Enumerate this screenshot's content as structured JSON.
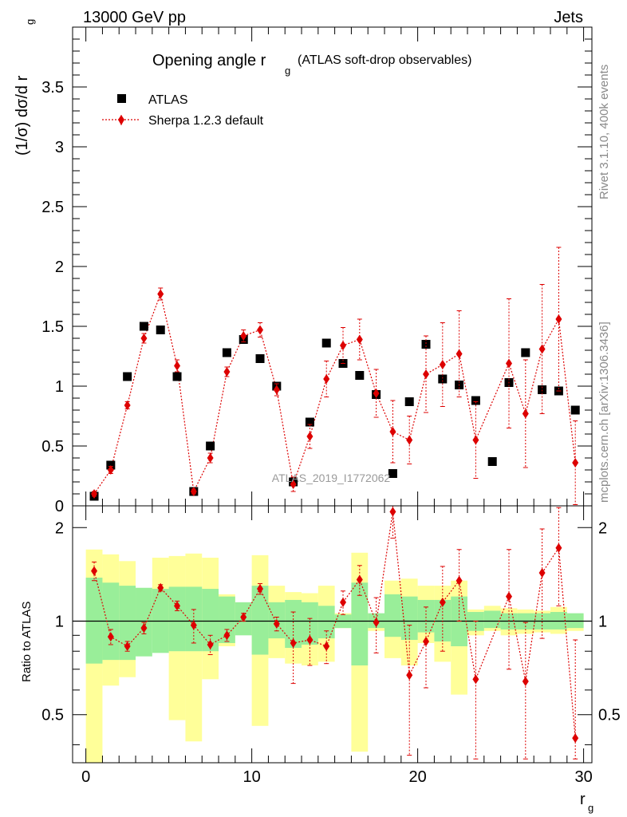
{
  "header": {
    "energy_label": "13000 GeV pp",
    "process_label": "Jets",
    "title_main": "Opening angle r",
    "title_sub": "g",
    "title_extra": "(ATLAS soft-drop observables)",
    "ylabel_main": "(1/σ) dσ/d r",
    "ylabel_sub": "g",
    "ratio_ylabel": "Ratio to ATLAS",
    "xlabel_main": "r",
    "xlabel_sub": "g",
    "watermark": "ATLAS_2019_I1772062",
    "side_rivet": "Rivet 3.1.10,  400k events",
    "side_mcplots": "mcplots.cern.ch [arXiv:1306.3436]"
  },
  "legend": {
    "data_label": "ATLAS",
    "mc_label": "Sherpa 1.2.3 default"
  },
  "colors": {
    "data": "#000000",
    "mc": "#dd0000",
    "band_inner": "#99ee99",
    "band_outer": "#ffff99"
  },
  "chart_data": [
    {
      "type": "scatter",
      "panel": "main",
      "title": "Opening angle r_g (ATLAS soft-drop observables)",
      "xlabel": "r_g",
      "ylabel": "(1/σ) dσ/d r_g",
      "xlim": [
        -0.8,
        30.5
      ],
      "ylim": [
        0,
        4.0
      ],
      "xticks": [
        0,
        10,
        20,
        30
      ],
      "yticks": [
        0,
        0.5,
        1,
        1.5,
        2,
        2.5,
        3,
        3.5
      ],
      "ytick_labels": [
        "0",
        "0.5",
        "1",
        "1.5",
        "2",
        "2.5",
        "3",
        "3.5"
      ],
      "series": [
        {
          "name": "ATLAS",
          "x": [
            0.5,
            1.5,
            2.5,
            3.5,
            4.5,
            5.5,
            6.5,
            7.5,
            8.5,
            9.5,
            10.5,
            11.5,
            12.5,
            13.5,
            14.5,
            15.5,
            16.5,
            17.5,
            18.5,
            19.5,
            20.5,
            21.5,
            22.5,
            23.5,
            24.5,
            25.5,
            26.5,
            27.5,
            28.5,
            29.5
          ],
          "y": [
            0.08,
            0.34,
            1.08,
            1.5,
            1.47,
            1.08,
            0.12,
            0.5,
            1.28,
            1.39,
            1.23,
            1.0,
            0.2,
            0.7,
            1.36,
            1.19,
            1.09,
            0.93,
            0.27,
            0.87,
            1.35,
            1.06,
            1.01,
            0.88,
            0.37,
            1.03,
            1.28,
            0.97,
            0.96,
            0.8
          ]
        },
        {
          "name": "Sherpa 1.2.3 default",
          "x": [
            0.5,
            1.5,
            2.5,
            3.5,
            4.5,
            5.5,
            6.5,
            7.5,
            8.5,
            9.5,
            10.5,
            11.5,
            12.5,
            13.5,
            14.5,
            15.5,
            16.5,
            17.5,
            18.5,
            19.5,
            20.5,
            21.5,
            22.5,
            23.5,
            25.5,
            26.5,
            27.5,
            28.5,
            29.5
          ],
          "y": [
            0.1,
            0.3,
            0.84,
            1.4,
            1.77,
            1.17,
            0.12,
            0.4,
            1.12,
            1.42,
            1.47,
            0.97,
            0.18,
            0.58,
            1.06,
            1.34,
            1.39,
            0.94,
            0.62,
            0.55,
            1.1,
            1.18,
            1.27,
            0.55,
            1.19,
            0.77,
            1.31,
            1.56,
            0.36
          ],
          "err": [
            0.02,
            0.03,
            0.03,
            0.04,
            0.05,
            0.05,
            0.02,
            0.04,
            0.04,
            0.05,
            0.06,
            0.05,
            0.06,
            0.1,
            0.15,
            0.15,
            0.17,
            0.2,
            0.26,
            0.2,
            0.32,
            0.35,
            0.36,
            0.32,
            0.54,
            0.45,
            0.54,
            0.6,
            0.35
          ]
        }
      ]
    },
    {
      "type": "scatter",
      "panel": "ratio",
      "ylabel": "Ratio to ATLAS",
      "xlabel": "r_g",
      "xlim": [
        -0.8,
        30.5
      ],
      "ylim": [
        0.35,
        2.35
      ],
      "xticks": [
        0,
        10,
        20,
        30
      ],
      "xtick_labels": [
        "0",
        "10",
        "20",
        "30"
      ],
      "yticks": [
        0.5,
        1,
        2
      ],
      "ytick_labels": [
        "0.5",
        "1",
        "2"
      ],
      "reference_line": 1,
      "bands": {
        "inner": [
          [
            0.73,
            1.38
          ],
          [
            0.75,
            1.33
          ],
          [
            0.75,
            1.3
          ],
          [
            0.77,
            1.28
          ],
          [
            0.79,
            1.27
          ],
          [
            0.8,
            1.29
          ],
          [
            0.8,
            1.29
          ],
          [
            0.8,
            1.27
          ],
          [
            0.85,
            1.2
          ],
          [
            0.9,
            1.15
          ],
          [
            0.78,
            1.3
          ],
          [
            0.88,
            1.15
          ],
          [
            0.82,
            1.17
          ],
          [
            0.84,
            1.15
          ],
          [
            0.88,
            1.12
          ],
          [
            0.95,
            1.05
          ],
          [
            0.72,
            1.33
          ],
          [
            0.95,
            1.06
          ],
          [
            0.89,
            1.22
          ],
          [
            0.87,
            1.2
          ],
          [
            0.92,
            1.17
          ],
          [
            0.86,
            1.17
          ],
          [
            0.83,
            1.2
          ],
          [
            0.93,
            1.07
          ],
          [
            0.95,
            1.08
          ],
          [
            0.94,
            1.06
          ],
          [
            0.94,
            1.06
          ],
          [
            0.94,
            1.06
          ],
          [
            0.94,
            1.07
          ],
          [
            0.95,
            1.06
          ]
        ],
        "outer": [
          [
            0.35,
            1.7
          ],
          [
            0.62,
            1.64
          ],
          [
            0.66,
            1.56
          ],
          [
            0.87,
            1.2
          ],
          [
            0.87,
            1.6
          ],
          [
            0.48,
            1.62
          ],
          [
            0.41,
            1.65
          ],
          [
            0.65,
            1.6
          ],
          [
            0.83,
            1.22
          ],
          [
            0.97,
            1.05
          ],
          [
            0.46,
            1.63
          ],
          [
            0.76,
            1.3
          ],
          [
            0.73,
            1.24
          ],
          [
            0.72,
            1.23
          ],
          [
            0.74,
            1.3
          ],
          [
            0.95,
            1.06
          ],
          [
            0.38,
            1.66
          ],
          [
            0.93,
            1.05
          ],
          [
            0.76,
            1.35
          ],
          [
            0.72,
            1.37
          ],
          [
            0.85,
            1.3
          ],
          [
            0.74,
            1.3
          ],
          [
            0.58,
            1.35
          ],
          [
            0.9,
            1.09
          ],
          [
            0.93,
            1.12
          ],
          [
            0.9,
            1.1
          ],
          [
            0.91,
            1.09
          ],
          [
            0.92,
            1.08
          ],
          [
            0.91,
            1.11
          ],
          [
            0.93,
            1.05
          ]
        ]
      },
      "series": [
        {
          "name": "Sherpa 1.2.3 default / ATLAS",
          "x": [
            0.5,
            1.5,
            2.5,
            3.5,
            4.5,
            5.5,
            6.5,
            7.5,
            8.5,
            9.5,
            10.5,
            11.5,
            12.5,
            13.5,
            14.5,
            15.5,
            16.5,
            17.5,
            18.5,
            19.5,
            20.5,
            21.5,
            22.5,
            23.5,
            25.5,
            26.5,
            27.5,
            28.5,
            29.5
          ],
          "y": [
            1.45,
            0.89,
            0.83,
            0.95,
            1.28,
            1.12,
            0.97,
            0.84,
            0.9,
            1.03,
            1.27,
            0.98,
            0.85,
            0.87,
            0.83,
            1.15,
            1.36,
            0.99,
            2.25,
            0.67,
            0.86,
            1.15,
            1.35,
            0.65,
            1.2,
            0.64,
            1.43,
            1.72,
            0.42
          ],
          "err": [
            0.1,
            0.05,
            0.03,
            0.04,
            0.03,
            0.04,
            0.12,
            0.06,
            0.04,
            0.03,
            0.05,
            0.05,
            0.22,
            0.15,
            0.1,
            0.1,
            0.15,
            0.2,
            0.4,
            0.3,
            0.25,
            0.35,
            0.35,
            0.35,
            0.5,
            0.35,
            0.55,
            0.6,
            0.45
          ]
        }
      ]
    }
  ]
}
